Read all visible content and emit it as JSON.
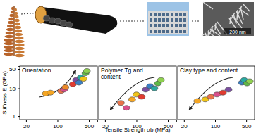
{
  "illustration": {
    "scale_bar": "200 nm"
  },
  "chart_data": [
    {
      "type": "scatter",
      "title": [
        "Orientation"
      ],
      "ylabel": "Stiffness E (GPa)",
      "log": true,
      "marker": "ellipse",
      "x": [
        55,
        70,
        120,
        140,
        150,
        220,
        260,
        300,
        330,
        380,
        420,
        450
      ],
      "values": [
        6.5,
        7,
        8,
        9,
        11,
        14,
        20,
        16,
        25,
        22,
        35,
        42
      ],
      "colors": [
        "#f5a623",
        "#f5a623",
        "#e8734a",
        "#d94f8a",
        "#ec8a2a",
        "#e03c31",
        "#7b4fa0",
        "#3a7fc4",
        "#2aa8a0",
        "#f0c419",
        "#5fb846",
        "#8fd14f"
      ],
      "xlim": [
        14.5,
        770
      ],
      "ylim": [
        0.75,
        63
      ],
      "xticks": [
        20,
        100,
        500
      ],
      "yticks": [
        1,
        10,
        50
      ]
    },
    {
      "type": "scatter",
      "title": [
        "Polymer Tg and",
        "content"
      ],
      "xlabel": "Tensile Strength σb (MPa)",
      "log": true,
      "marker": "ellipse",
      "tick_labels": "x",
      "x": [
        45,
        60,
        80,
        100,
        130,
        160,
        200,
        250,
        300,
        350
      ],
      "values": [
        3,
        2,
        4,
        6,
        5,
        9,
        12,
        10,
        15,
        20
      ],
      "colors": [
        "#e8734a",
        "#d94f8a",
        "#f5a623",
        "#f0c419",
        "#e03c31",
        "#7b4fa0",
        "#3a7fc4",
        "#2aa8a0",
        "#5fb846",
        "#8fd14f"
      ],
      "xlim": [
        14.5,
        770
      ],
      "ylim": [
        0.75,
        63
      ],
      "xticks": [
        20,
        100,
        500
      ]
    },
    {
      "type": "scatter",
      "title": [
        "Clay type and content"
      ],
      "log": true,
      "marker": "ellipse",
      "tick_labels": "x",
      "x": [
        40,
        60,
        80,
        110,
        150,
        200,
        400,
        450,
        520,
        600
      ],
      "values": [
        3.5,
        4,
        5,
        6,
        7,
        9,
        16,
        20,
        15,
        18
      ],
      "colors": [
        "#f5a623",
        "#f0c419",
        "#e8734a",
        "#d94f8a",
        "#e03c31",
        "#7b4fa0",
        "#3a7fc4",
        "#2aa8a0",
        "#5fb846",
        "#8fd14f"
      ],
      "xlim": [
        14.5,
        770
      ],
      "ylim": [
        0.75,
        63
      ],
      "xticks": [
        20,
        100,
        500
      ]
    }
  ]
}
